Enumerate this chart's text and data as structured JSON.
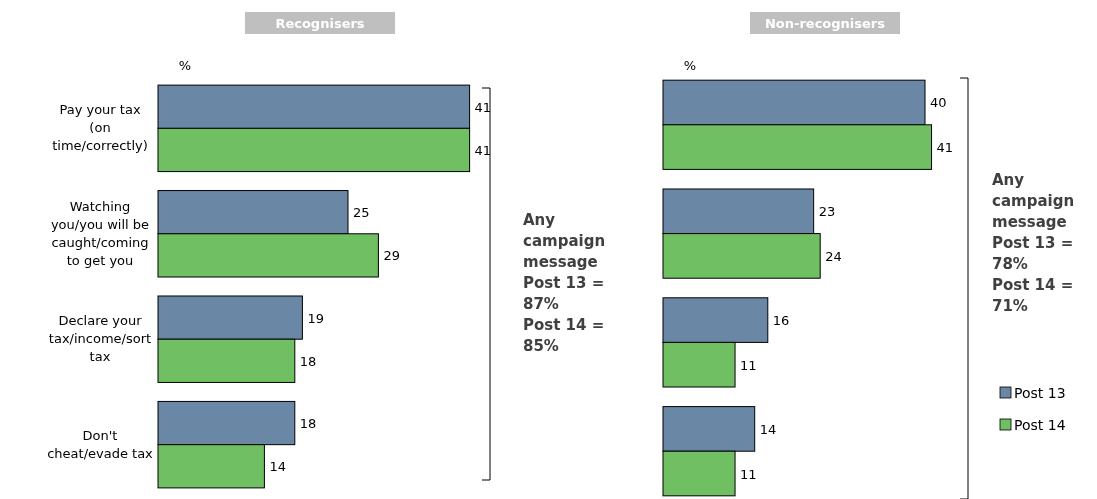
{
  "chart_data": [
    {
      "type": "bar",
      "orientation": "horizontal",
      "title": "Recognisers",
      "xlabel": "%",
      "categories": [
        "Pay your tax (on time/correctly)",
        "Watching you/you will be caught/coming to get you",
        "Declare your tax/income/sort tax",
        "Don't cheat/evade tax"
      ],
      "series": [
        {
          "color": "#6a87a5",
          "values": [
            41,
            25,
            19,
            18
          ]
        },
        {
          "color": "#70bf63",
          "values": [
            41,
            29,
            18,
            14
          ]
        }
      ],
      "data_labels": true,
      "legend": false,
      "annotations": [
        "Any campaign message Post 13 = 87% Post 14 = 85%"
      ]
    },
    {
      "type": "bar",
      "orientation": "horizontal",
      "title": "Non-recognisers",
      "xlabel": "%",
      "categories": [
        null,
        null,
        null,
        null
      ],
      "series": [
        {
          "name": "Post 13",
          "color": "#6a87a5",
          "values": [
            40,
            23,
            16,
            14
          ]
        },
        {
          "name": "Post 14",
          "color": "#70bf63",
          "values": [
            41,
            24,
            11,
            11
          ]
        }
      ],
      "data_labels": true,
      "legend": "bottom right",
      "annotations": [
        "Any campaign message Post 13 = 78% Post 14 = 71%"
      ]
    }
  ]
}
